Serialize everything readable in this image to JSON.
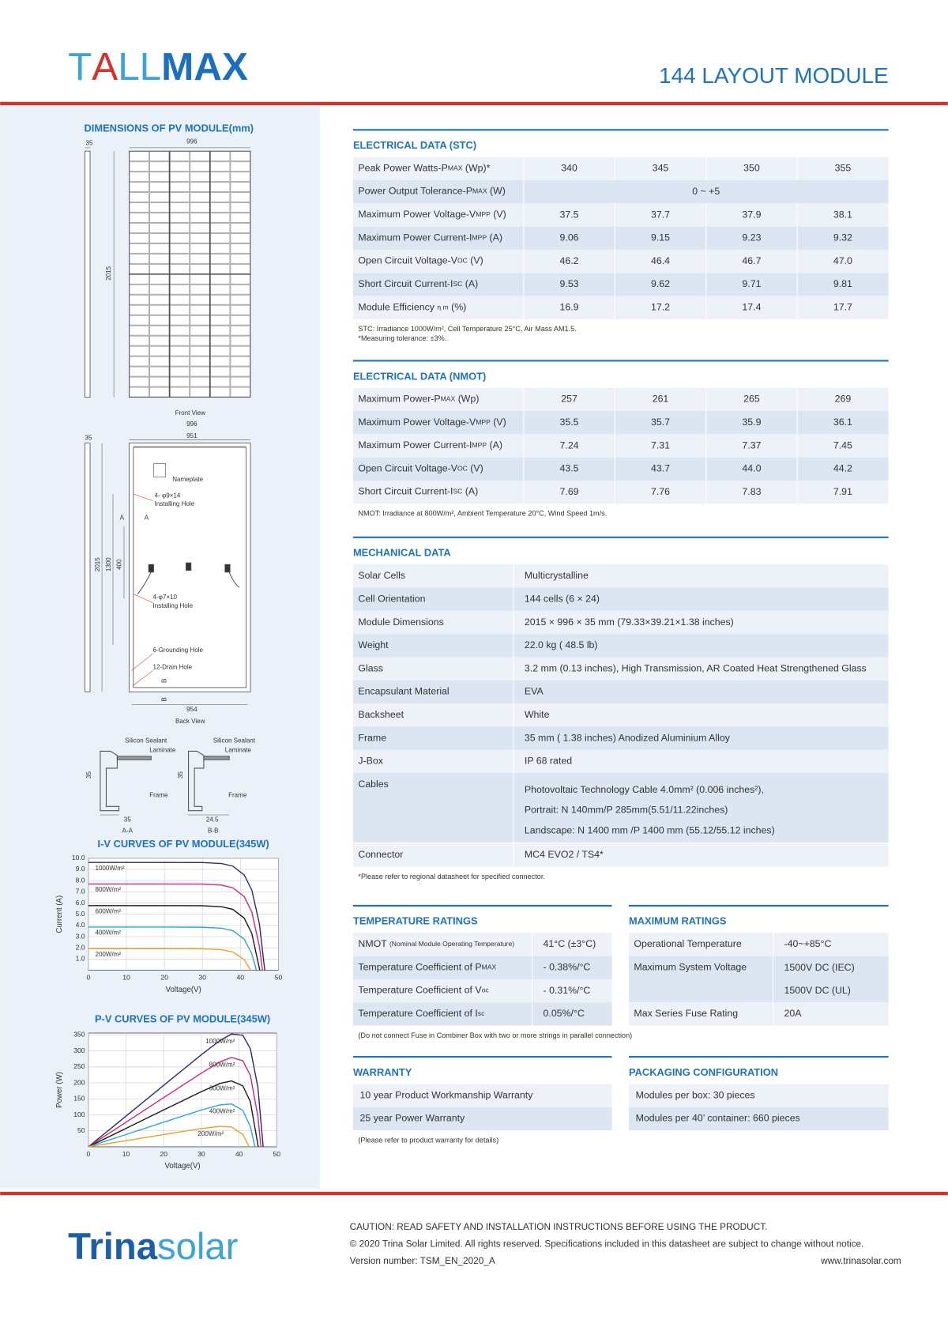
{
  "header": {
    "logo": [
      "T",
      "A",
      "LL",
      "MAX"
    ],
    "title": "144 LAYOUT MODULE"
  },
  "dimensions": {
    "title": "DIMENSIONS OF PV MODULE(mm)",
    "labels": [
      "35",
      "996",
      "2015",
      "Front View",
      "996",
      "951",
      "35",
      "Nameplate",
      "4- φ9×14",
      "Installing Hole",
      "A",
      "A",
      "2015",
      "1300",
      "400",
      "4-φ7×10",
      "Installing Hole",
      "6-Grounding Hole",
      "12-Drain Hole",
      "B",
      "B",
      "954",
      "Back View",
      "Silicon Sealant",
      "Laminate",
      "35",
      "Frame",
      "35",
      "A-A",
      "Silicon Sealant",
      "Laminate",
      "35",
      "Frame",
      "24.5",
      "B-B"
    ]
  },
  "iv_chart": {
    "type": "line",
    "title": "I-V CURVES OF PV MODULE(345W)",
    "x_label": "Voltage(V)",
    "y_label": "Current (A)",
    "xlim": [
      0,
      50
    ],
    "xticks": [
      0,
      10,
      20,
      30,
      40,
      50
    ],
    "ylim": [
      0,
      10
    ],
    "yticks": [
      {
        "value": 1,
        "label": "1.0"
      },
      {
        "value": 2,
        "label": "2.0"
      },
      {
        "value": 3,
        "label": "3.0"
      },
      {
        "value": 4,
        "label": "4.0"
      },
      {
        "value": 5,
        "label": "5.0"
      },
      {
        "value": 6,
        "label": "6.0"
      },
      {
        "value": 7,
        "label": "7.0"
      },
      {
        "value": 8,
        "label": "8.0"
      },
      {
        "value": 9,
        "label": "9.0"
      },
      {
        "value": 10,
        "label": "10.0"
      }
    ],
    "grid": true,
    "series": [
      {
        "name": "1000W/m²",
        "color": "#2d2a6b",
        "x": [
          0,
          10,
          20,
          30,
          35,
          38,
          41,
          43,
          45,
          46.4
        ],
        "values": [
          9.62,
          9.62,
          9.62,
          9.61,
          9.52,
          9.29,
          8.51,
          7.15,
          4.13,
          0
        ]
      },
      {
        "name": "800W/m²",
        "color": "#d6247a",
        "x": [
          0,
          10,
          20,
          30,
          35,
          38,
          41,
          43,
          45,
          45.8
        ],
        "values": [
          7.7,
          7.7,
          7.7,
          7.69,
          7.6,
          7.36,
          6.57,
          5.19,
          2.11,
          0
        ]
      },
      {
        "name": "600W/m²",
        "color": "#1a1a1a",
        "x": [
          0,
          10,
          20,
          30,
          35,
          38,
          41,
          43,
          45.1
        ],
        "values": [
          5.77,
          5.77,
          5.77,
          5.76,
          5.67,
          5.43,
          4.65,
          3.28,
          0
        ]
      },
      {
        "name": "400W/m²",
        "color": "#2aa6d9",
        "x": [
          0,
          10,
          20,
          30,
          35,
          38,
          41,
          43,
          44.2
        ],
        "values": [
          3.85,
          3.85,
          3.85,
          3.84,
          3.75,
          3.53,
          2.78,
          1.47,
          0
        ]
      },
      {
        "name": "200W/m²",
        "color": "#e8a323",
        "x": [
          0,
          10,
          20,
          30,
          35,
          38,
          41,
          42.7
        ],
        "values": [
          1.92,
          1.92,
          1.92,
          1.91,
          1.83,
          1.63,
          0.95,
          0
        ]
      }
    ]
  },
  "pv_chart": {
    "type": "line",
    "title": "P-V CURVES OF PV MODULE(345W)",
    "x_label": "Voltage(V)",
    "y_label": "Power (W)",
    "xlim": [
      0,
      50
    ],
    "xticks": [
      0,
      10,
      20,
      30,
      40,
      50
    ],
    "ylim": [
      0,
      356
    ],
    "yticks": [
      50,
      100,
      150,
      200,
      250,
      300,
      350
    ],
    "grid": true,
    "series": [
      {
        "name": "1000W/m²",
        "color": "#2d2a6b",
        "x": [
          0,
          10,
          20,
          30,
          35,
          38,
          41,
          43,
          45,
          46.4
        ],
        "values": [
          0,
          96.2,
          192.4,
          288.3,
          333.2,
          353,
          349,
          307,
          186,
          0
        ]
      },
      {
        "name": "800W/m²",
        "color": "#d6247a",
        "x": [
          0,
          10,
          20,
          30,
          35,
          38,
          41,
          43,
          45,
          45.8
        ],
        "values": [
          0,
          77,
          154,
          230.7,
          266,
          279.7,
          269.4,
          223.2,
          95,
          0
        ]
      },
      {
        "name": "600W/m²",
        "color": "#1a1a1a",
        "x": [
          0,
          10,
          20,
          30,
          35,
          38,
          41,
          43,
          45.1
        ],
        "values": [
          0,
          57.7,
          115.4,
          172.8,
          198.5,
          206.3,
          190.7,
          141,
          0
        ]
      },
      {
        "name": "400W/m²",
        "color": "#2aa6d9",
        "x": [
          0,
          10,
          20,
          30,
          35,
          38,
          41,
          43,
          44.2
        ],
        "values": [
          0,
          38.5,
          77,
          115.2,
          131.3,
          134.1,
          114,
          63.2,
          0
        ]
      },
      {
        "name": "200W/m²",
        "color": "#e8a323",
        "x": [
          0,
          10,
          20,
          30,
          35,
          38,
          41,
          42.7
        ],
        "values": [
          0,
          19.2,
          38.4,
          57.3,
          64.1,
          61.9,
          39,
          0
        ]
      }
    ]
  },
  "stc": {
    "title": "ELECTRICAL DATA (STC)",
    "rows": [
      {
        "label": [
          "Peak Power Watts-P",
          "MAX",
          " (Wp)*"
        ],
        "values": [
          "340",
          "345",
          "350",
          "355"
        ]
      },
      {
        "label": [
          "Power Output Tolerance-P",
          "MAX",
          " (W)"
        ],
        "values": [
          "0 ~ +5"
        ]
      },
      {
        "label": [
          "Maximum Power Voltage-V",
          "MPP",
          " (V)"
        ],
        "values": [
          "37.5",
          "37.7",
          "37.9",
          "38.1"
        ]
      },
      {
        "label": [
          "Maximum Power Current-I",
          "MPP",
          " (A)"
        ],
        "values": [
          "9.06",
          "9.15",
          "9.23",
          "9.32"
        ]
      },
      {
        "label": [
          "Open Circuit Voltage-V",
          "OC",
          " (V)"
        ],
        "values": [
          "46.2",
          "46.4",
          "46.7",
          "47.0"
        ]
      },
      {
        "label": [
          "Short Circuit Current-I",
          "SC",
          " (A)"
        ],
        "values": [
          "9.53",
          "9.62",
          "9.71",
          "9.81"
        ]
      },
      {
        "label": [
          "Module Efficiency  ",
          "η  m",
          " (%)"
        ],
        "values": [
          "16.9",
          "17.2",
          "17.4",
          "17.7"
        ]
      }
    ],
    "notes": [
      "STC: Irradiance 1000W/m², Cell Temperature 25°C, Air Mass AM1.5.",
      "*Measuring tolerance: ±3%."
    ]
  },
  "nmot": {
    "title": "ELECTRICAL DATA (NMOT)",
    "rows": [
      {
        "label": [
          "Maximum Power-P",
          "MAX",
          " (Wp)"
        ],
        "values": [
          "257",
          "261",
          "265",
          "269"
        ]
      },
      {
        "label": [
          "Maximum Power Voltage-V",
          "MPP",
          " (V)"
        ],
        "values": [
          "35.5",
          "35.7",
          "35.9",
          "36.1"
        ]
      },
      {
        "label": [
          "Maximum Power Current-I",
          "MPP",
          " (A)"
        ],
        "values": [
          "7.24",
          "7.31",
          "7.37",
          "7.45"
        ]
      },
      {
        "label": [
          "Open Circuit Voltage-V",
          "OC",
          " (V)"
        ],
        "values": [
          "43.5",
          "43.7",
          "44.0",
          "44.2"
        ]
      },
      {
        "label": [
          "Short Circuit Current-I",
          "SC",
          " (A)"
        ],
        "values": [
          "7.69",
          "7.76",
          "7.83",
          "7.91"
        ]
      }
    ],
    "notes": [
      "NMOT: Irradiance at 800W/m², Ambient Temperature 20°C, Wind Speed 1m/s."
    ]
  },
  "mechanical": {
    "title": "MECHANICAL DATA",
    "rows": [
      {
        "label": "Solar Cells",
        "value": "Multicrystalline"
      },
      {
        "label": "Cell Orientation",
        "value": "144 cells (6 × 24)"
      },
      {
        "label": "Module Dimensions",
        "value": "2015 × 996 × 35 mm (79.33×39.21×1.38  inches)"
      },
      {
        "label": "Weight",
        "value": " 22.0 kg ( 48.5 lb)"
      },
      {
        "label": "Glass",
        "value": "3.2 mm (0.13 inches), High Transmission, AR Coated Heat Strengthened Glass"
      },
      {
        "label": "Encapsulant  Material",
        "value": "EVA"
      },
      {
        "label": "Backsheet",
        "value": "White"
      },
      {
        "label": "Frame",
        "value": "35 mm ( 1.38 inches) Anodized Aluminium Alloy"
      },
      {
        "label": "J-Box",
        "value": "IP 68 rated"
      },
      {
        "label": "Cables",
        "lines": [
          "Photovoltaic Technology Cable 4.0mm² (0.006 inches²),",
          "Portrait: N 140mm/P 285mm(5.51/11.22inches)",
          "Landscape: N 1400 mm /P 1400 mm (55.12/55.12 inches)"
        ]
      },
      {
        "label": "Connector",
        "value": "MC4 EVO2 / TS4*"
      }
    ],
    "notes": [
      "*Please refer to regional datasheet for specified connector."
    ]
  },
  "temperature": {
    "title": "TEMPERATURE RATINGS",
    "rows": [
      {
        "label": [
          "NMOT ",
          "(Nominal Module Operating Temperature)"
        ],
        "value": "41°C (±3°C)"
      },
      {
        "label": [
          "Temperature Coefficient of P",
          "MAX"
        ],
        "value": "- 0.38%/°C"
      },
      {
        "label": [
          "Temperature Coefficient of V",
          "oc"
        ],
        "value": "- 0.31%/°C"
      },
      {
        "label": [
          "Temperature Coefficient of I",
          "sc"
        ],
        "value": "0.05%/°C"
      }
    ],
    "notes": [
      "(Do not connect Fuse in Combiner Box with two or more strings in parallel connection)"
    ]
  },
  "maximum": {
    "title": "MAXIMUM RATINGS",
    "rows": [
      {
        "label": "Operational Temperature",
        "value": "-40~+85°C"
      },
      {
        "label": "Maximum System Voltage",
        "lines": [
          "1500V DC (IEC)",
          "1500V DC (UL)"
        ]
      },
      {
        "label": "Max Series Fuse Rating",
        "value": "20A"
      }
    ]
  },
  "warranty": {
    "title": "WARRANTY",
    "rows": [
      {
        "text": "10 year Product Workmanship Warranty"
      },
      {
        "text": "25 year Power Warranty"
      }
    ],
    "notes": [
      "(Please refer to product warranty for details)"
    ]
  },
  "packaging": {
    "title": "PACKAGING CONFIGURATION",
    "rows": [
      {
        "text": "Modules per box: 30 pieces"
      },
      {
        "text": "Modules per 40’ container: 660 pieces"
      }
    ]
  },
  "footer": {
    "logo": [
      "Trina",
      "solar"
    ],
    "lines": [
      "CAUTION: READ SAFETY AND INSTALLATION INSTRUCTIONS BEFORE USING THE PRODUCT.",
      "© 2020 Trina Solar Limited. All rights reserved. Specifications included in this datasheet are subject to change without notice.",
      "Version number: TSM_EN_2020_A"
    ],
    "website": "www.trinasolar.com"
  }
}
